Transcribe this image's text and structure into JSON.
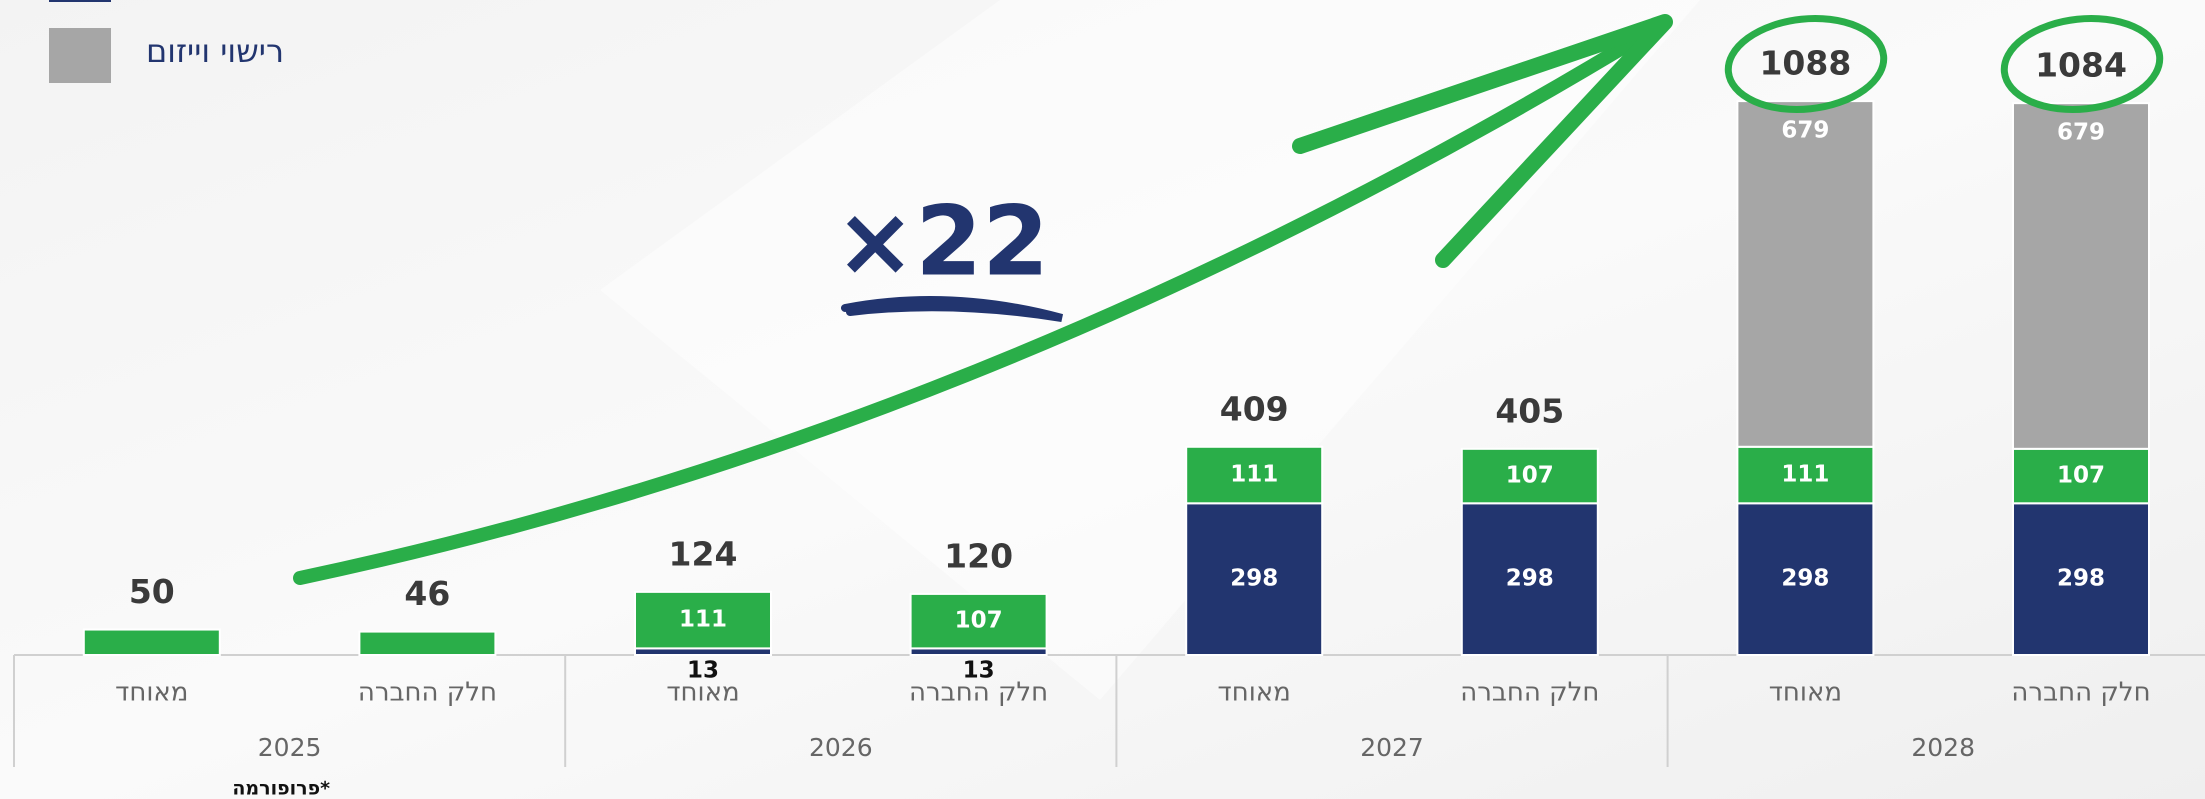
{
  "chart_data": {
    "type": "bar",
    "stacked": true,
    "categories": [
      "מאוחד",
      "חלק החברה",
      "מאוחד",
      "חלק החברה",
      "מאוחד",
      "חלק החברה",
      "מאוחד",
      "חלק החברה"
    ],
    "groups": [
      "2025",
      "2026",
      "2027",
      "2028"
    ],
    "series": [
      {
        "color": "#22356f",
        "values": [
          null,
          null,
          13,
          13,
          298,
          298,
          298,
          298
        ]
      },
      {
        "color": "#2aae49",
        "values": [
          50,
          46,
          111,
          107,
          111,
          107,
          111,
          107
        ]
      },
      {
        "name": "רישוי וייזום",
        "color": "#a6a6a6",
        "values": [
          null,
          null,
          null,
          null,
          null,
          null,
          679,
          679
        ]
      }
    ],
    "totals": [
      50,
      46,
      124,
      120,
      409,
      405,
      1088,
      1084
    ],
    "ylim": [
      0,
      1100
    ],
    "annotation": "×22",
    "footnote": "פרופורמה*"
  }
}
